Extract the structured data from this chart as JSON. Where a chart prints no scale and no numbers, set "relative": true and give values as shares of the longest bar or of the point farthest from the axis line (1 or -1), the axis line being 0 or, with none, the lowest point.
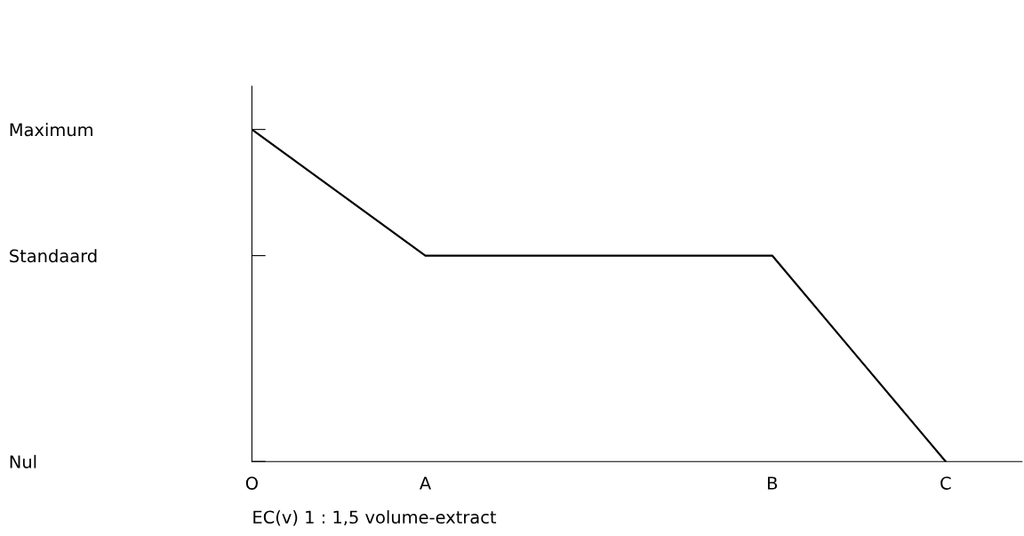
{
  "chart_data": {
    "type": "line",
    "xlabel": "EC(v) 1 : 1,5 volume-extract",
    "relative": true,
    "categories": [
      "O",
      null,
      "A",
      null,
      null,
      null,
      "B",
      null,
      "C"
    ],
    "series": [
      {
        "color": "#000000",
        "values": [
          1,
          0.81,
          0.62,
          0.62,
          0.62,
          0.62,
          0.62,
          0.31,
          0
        ]
      }
    ],
    "annotations": [
      "Nul",
      "Standaard",
      "Maximum"
    ],
    "grid": false,
    "line_style": "solid"
  }
}
